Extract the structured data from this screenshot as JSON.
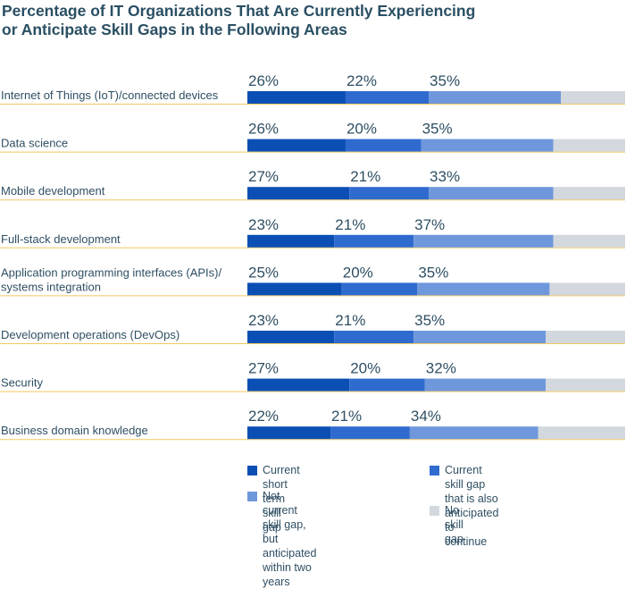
{
  "title_lines": [
    "Percentage of IT Organizations That Are Currently Experiencing",
    "or Anticipate Skill Gaps in the Following Areas"
  ],
  "colors": {
    "divider": "#f2c862",
    "text": "#2f4f63"
  },
  "chart_data": {
    "type": "bar",
    "orientation": "horizontal",
    "stacked": true,
    "title": "Percentage of IT Organizations That Are Currently Experiencing or Anticipate Skill Gaps in the Following Areas",
    "categories": [
      [
        "Internet of Things (IoT)/connected devices"
      ],
      [
        "Data science"
      ],
      [
        "Mobile development"
      ],
      [
        "Full-stack development"
      ],
      [
        "Application programming interfaces (APIs)/",
        "systems integration"
      ],
      [
        "Development operations (DevOps)"
      ],
      [
        "Security"
      ],
      [
        "Business domain knowledge"
      ]
    ],
    "series": [
      {
        "name": "Current short term skill gap",
        "color": "#0b4fb5",
        "values": [
          26,
          26,
          27,
          23,
          25,
          23,
          27,
          22
        ],
        "labels": [
          "26%",
          "26%",
          "27%",
          "23%",
          "25%",
          "23%",
          "27%",
          "22%"
        ]
      },
      {
        "name": "Current skill gap that is also anticipated to continue",
        "color": "#2f6bcf",
        "values": [
          22,
          20,
          21,
          21,
          20,
          21,
          20,
          21
        ],
        "labels": [
          "22%",
          "20%",
          "21%",
          "21%",
          "20%",
          "21%",
          "20%",
          "21%"
        ]
      },
      {
        "name": "Not current skill gap, but anticipated within two years",
        "color": "#6f97dc",
        "values": [
          35,
          35,
          33,
          37,
          35,
          35,
          32,
          34
        ],
        "labels": [
          "35%",
          "35%",
          "33%",
          "37%",
          "35%",
          "35%",
          "32%",
          "34%"
        ]
      },
      {
        "name": "No skill gap",
        "color": "#d2d8dd",
        "values": [
          17,
          19,
          19,
          19,
          20,
          21,
          21,
          23
        ]
      }
    ],
    "xlim": [
      0,
      100
    ],
    "legend_position": "bottom"
  },
  "legend": [
    {
      "lines": [
        "Current short term skill gap"
      ],
      "color": "#0b4fb5"
    },
    {
      "lines": [
        "Current skill gap that is also",
        "anticipated to continue"
      ],
      "color": "#2f6bcf"
    },
    {
      "lines": [
        "Not current skill gap, but",
        "anticipated within two years"
      ],
      "color": "#6f97dc"
    },
    {
      "lines": [
        "No skill gap"
      ],
      "color": "#d2d8dd"
    }
  ]
}
